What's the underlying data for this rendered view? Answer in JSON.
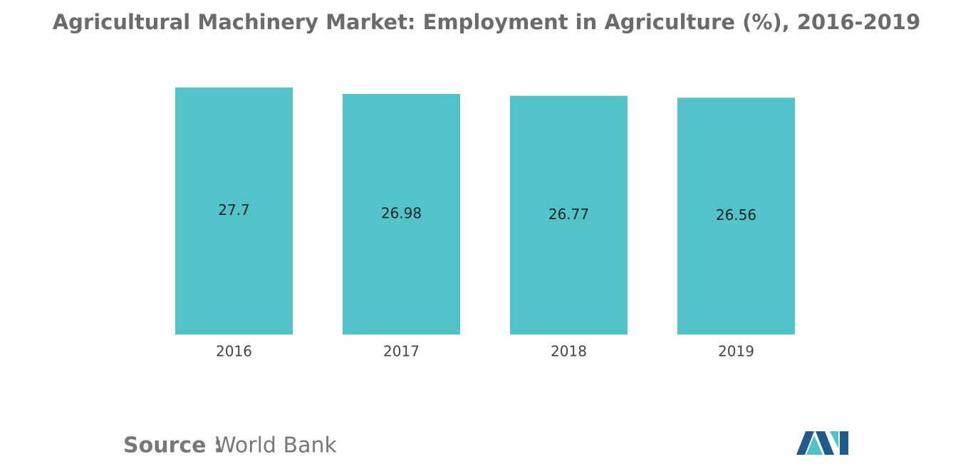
{
  "chart_data": {
    "type": "bar",
    "title": "Agricultural Machinery Market: Employment in Agriculture (%), 2016-2019",
    "categories": [
      "2016",
      "2017",
      "2018",
      "2019"
    ],
    "values": [
      27.7,
      26.98,
      26.77,
      26.56
    ],
    "color": "#52c3c9",
    "source_label": "Source :",
    "source": "World Bank"
  }
}
